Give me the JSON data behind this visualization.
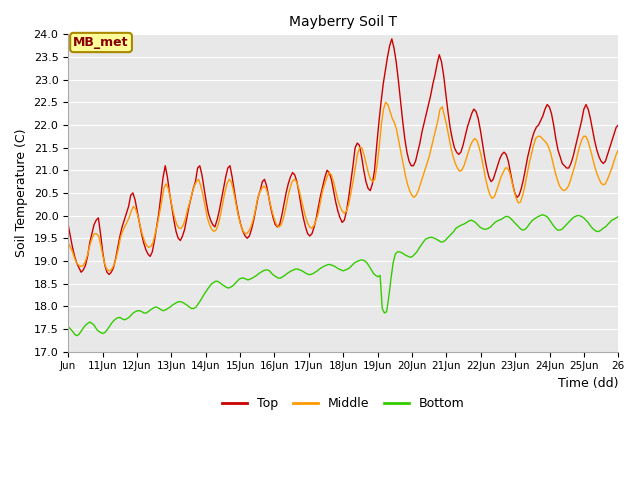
{
  "title": "Mayberry Soil T",
  "xlabel": "Time (dd)",
  "ylabel": "Soil Temperature (C)",
  "ylim": [
    17.0,
    24.0
  ],
  "yticks": [
    17.0,
    17.5,
    18.0,
    18.5,
    19.0,
    19.5,
    20.0,
    20.5,
    21.0,
    21.5,
    22.0,
    22.5,
    23.0,
    23.5,
    24.0
  ],
  "x_labels": [
    "Jun",
    "11Jun",
    "12Jun",
    "13Jun",
    "14Jun",
    "15Jun",
    "16Jun",
    "17Jun",
    "18Jun",
    "19Jun",
    "20Jun",
    "21Jun",
    "22Jun",
    "23Jun",
    "24Jun",
    "25Jun",
    "26"
  ],
  "legend_label": "MB_met",
  "top_color": "#cc0000",
  "middle_color": "#ff9900",
  "bottom_color": "#33cc00",
  "top_data": [
    19.8,
    19.55,
    19.3,
    19.1,
    18.95,
    18.85,
    18.75,
    18.8,
    18.9,
    19.1,
    19.4,
    19.6,
    19.8,
    19.9,
    19.95,
    19.6,
    19.2,
    18.9,
    18.75,
    18.7,
    18.75,
    18.85,
    19.05,
    19.3,
    19.55,
    19.75,
    19.9,
    20.05,
    20.2,
    20.45,
    20.5,
    20.35,
    20.1,
    19.85,
    19.6,
    19.4,
    19.25,
    19.15,
    19.1,
    19.2,
    19.45,
    19.75,
    20.05,
    20.45,
    20.85,
    21.1,
    20.85,
    20.5,
    20.2,
    19.9,
    19.65,
    19.5,
    19.45,
    19.55,
    19.7,
    19.95,
    20.2,
    20.4,
    20.6,
    20.75,
    21.05,
    21.1,
    20.9,
    20.6,
    20.3,
    20.05,
    19.9,
    19.8,
    19.75,
    19.9,
    20.1,
    20.35,
    20.6,
    20.85,
    21.05,
    21.1,
    20.85,
    20.55,
    20.25,
    20.0,
    19.8,
    19.65,
    19.55,
    19.5,
    19.55,
    19.7,
    19.9,
    20.15,
    20.4,
    20.55,
    20.75,
    20.8,
    20.65,
    20.4,
    20.15,
    19.95,
    19.8,
    19.75,
    19.8,
    20.0,
    20.25,
    20.5,
    20.7,
    20.85,
    20.95,
    20.9,
    20.75,
    20.5,
    20.2,
    19.95,
    19.75,
    19.6,
    19.55,
    19.6,
    19.75,
    19.95,
    20.2,
    20.45,
    20.65,
    20.85,
    21.0,
    20.95,
    20.8,
    20.55,
    20.3,
    20.1,
    19.95,
    19.85,
    19.9,
    20.1,
    20.4,
    20.75,
    21.1,
    21.5,
    21.6,
    21.55,
    21.3,
    21.0,
    20.75,
    20.6,
    20.55,
    20.7,
    21.0,
    21.55,
    22.05,
    22.5,
    22.9,
    23.2,
    23.5,
    23.75,
    23.9,
    23.7,
    23.4,
    23.0,
    22.55,
    22.1,
    21.7,
    21.4,
    21.2,
    21.1,
    21.1,
    21.2,
    21.4,
    21.6,
    21.85,
    22.05,
    22.25,
    22.45,
    22.65,
    22.9,
    23.1,
    23.35,
    23.55,
    23.4,
    23.1,
    22.7,
    22.3,
    21.95,
    21.7,
    21.5,
    21.4,
    21.35,
    21.4,
    21.55,
    21.75,
    21.95,
    22.1,
    22.25,
    22.35,
    22.3,
    22.15,
    21.9,
    21.6,
    21.3,
    21.05,
    20.85,
    20.75,
    20.8,
    20.95,
    21.1,
    21.25,
    21.35,
    21.4,
    21.35,
    21.2,
    20.95,
    20.7,
    20.5,
    20.4,
    20.45,
    20.6,
    20.8,
    21.05,
    21.3,
    21.5,
    21.7,
    21.85,
    21.95,
    22.0,
    22.1,
    22.2,
    22.35,
    22.45,
    22.4,
    22.25,
    22.0,
    21.7,
    21.45,
    21.3,
    21.15,
    21.1,
    21.05,
    21.05,
    21.15,
    21.3,
    21.5,
    21.7,
    21.9,
    22.1,
    22.35,
    22.45,
    22.35,
    22.15,
    21.9,
    21.65,
    21.45,
    21.3,
    21.2,
    21.15,
    21.2,
    21.35,
    21.5,
    21.65,
    21.8,
    21.95,
    22.0
  ],
  "middle_data": [
    19.4,
    19.3,
    19.2,
    19.05,
    18.95,
    18.9,
    18.88,
    18.9,
    19.0,
    19.15,
    19.35,
    19.5,
    19.6,
    19.6,
    19.55,
    19.35,
    19.1,
    18.9,
    18.8,
    18.78,
    18.82,
    18.9,
    19.05,
    19.25,
    19.5,
    19.65,
    19.75,
    19.85,
    19.95,
    20.1,
    20.2,
    20.15,
    20.0,
    19.8,
    19.6,
    19.45,
    19.35,
    19.3,
    19.32,
    19.4,
    19.6,
    19.8,
    20.05,
    20.3,
    20.6,
    20.7,
    20.6,
    20.4,
    20.15,
    19.95,
    19.8,
    19.72,
    19.72,
    19.8,
    19.95,
    20.15,
    20.3,
    20.5,
    20.65,
    20.75,
    20.8,
    20.65,
    20.45,
    20.2,
    19.95,
    19.8,
    19.7,
    19.65,
    19.68,
    19.8,
    20.0,
    20.25,
    20.5,
    20.7,
    20.8,
    20.75,
    20.55,
    20.3,
    20.05,
    19.85,
    19.7,
    19.62,
    19.6,
    19.65,
    19.75,
    19.9,
    20.1,
    20.35,
    20.5,
    20.6,
    20.65,
    20.6,
    20.45,
    20.25,
    20.05,
    19.9,
    19.78,
    19.75,
    19.8,
    19.95,
    20.15,
    20.4,
    20.6,
    20.75,
    20.8,
    20.75,
    20.6,
    20.4,
    20.2,
    20.0,
    19.85,
    19.75,
    19.72,
    19.78,
    19.9,
    20.05,
    20.3,
    20.55,
    20.7,
    20.85,
    20.95,
    20.9,
    20.75,
    20.55,
    20.35,
    20.2,
    20.1,
    20.05,
    20.1,
    20.25,
    20.5,
    20.75,
    21.05,
    21.35,
    21.5,
    21.5,
    21.35,
    21.15,
    20.95,
    20.8,
    20.75,
    20.8,
    21.1,
    21.5,
    22.0,
    22.35,
    22.5,
    22.45,
    22.3,
    22.15,
    22.05,
    21.9,
    21.65,
    21.4,
    21.15,
    20.9,
    20.7,
    20.55,
    20.45,
    20.4,
    20.45,
    20.55,
    20.7,
    20.85,
    21.0,
    21.15,
    21.3,
    21.5,
    21.7,
    21.9,
    22.1,
    22.35,
    22.4,
    22.2,
    22.0,
    21.75,
    21.5,
    21.3,
    21.15,
    21.05,
    20.98,
    21.0,
    21.1,
    21.25,
    21.4,
    21.55,
    21.65,
    21.7,
    21.65,
    21.5,
    21.3,
    21.05,
    20.8,
    20.6,
    20.45,
    20.38,
    20.42,
    20.55,
    20.7,
    20.85,
    20.95,
    21.05,
    21.05,
    20.95,
    20.75,
    20.55,
    20.38,
    20.28,
    20.3,
    20.45,
    20.65,
    20.9,
    21.15,
    21.35,
    21.55,
    21.7,
    21.75,
    21.75,
    21.7,
    21.65,
    21.6,
    21.5,
    21.35,
    21.15,
    20.95,
    20.78,
    20.65,
    20.58,
    20.55,
    20.58,
    20.65,
    20.78,
    20.95,
    21.1,
    21.3,
    21.5,
    21.65,
    21.75,
    21.75,
    21.65,
    21.48,
    21.3,
    21.1,
    20.95,
    20.82,
    20.72,
    20.68,
    20.7,
    20.8,
    20.92,
    21.05,
    21.2,
    21.35,
    21.45
  ],
  "bottom_data": [
    17.55,
    17.5,
    17.45,
    17.38,
    17.35,
    17.38,
    17.45,
    17.52,
    17.58,
    17.62,
    17.65,
    17.62,
    17.58,
    17.5,
    17.45,
    17.42,
    17.4,
    17.42,
    17.48,
    17.55,
    17.62,
    17.68,
    17.72,
    17.75,
    17.75,
    17.72,
    17.7,
    17.72,
    17.75,
    17.8,
    17.85,
    17.88,
    17.9,
    17.9,
    17.88,
    17.85,
    17.85,
    17.88,
    17.92,
    17.95,
    17.98,
    17.98,
    17.95,
    17.92,
    17.9,
    17.92,
    17.95,
    17.98,
    18.02,
    18.05,
    18.08,
    18.1,
    18.1,
    18.08,
    18.05,
    18.02,
    17.98,
    17.95,
    17.95,
    17.98,
    18.05,
    18.12,
    18.2,
    18.28,
    18.35,
    18.42,
    18.48,
    18.52,
    18.55,
    18.55,
    18.52,
    18.48,
    18.45,
    18.42,
    18.4,
    18.42,
    18.45,
    18.5,
    18.55,
    18.6,
    18.62,
    18.62,
    18.6,
    18.58,
    18.6,
    18.62,
    18.65,
    18.68,
    18.72,
    18.75,
    18.78,
    18.8,
    18.8,
    18.78,
    18.72,
    18.68,
    18.65,
    18.62,
    18.62,
    18.65,
    18.68,
    18.72,
    18.75,
    18.78,
    18.8,
    18.82,
    18.82,
    18.8,
    18.78,
    18.75,
    18.72,
    18.7,
    18.7,
    18.72,
    18.75,
    18.78,
    18.82,
    18.85,
    18.88,
    18.9,
    18.92,
    18.92,
    18.9,
    18.88,
    18.85,
    18.82,
    18.8,
    18.78,
    18.8,
    18.82,
    18.85,
    18.9,
    18.95,
    18.98,
    19.0,
    19.02,
    19.02,
    19.0,
    18.95,
    18.88,
    18.8,
    18.72,
    18.68,
    18.65,
    18.68,
    17.95,
    17.85,
    17.88,
    18.2,
    18.6,
    18.95,
    19.15,
    19.2,
    19.2,
    19.18,
    19.15,
    19.12,
    19.1,
    19.08,
    19.1,
    19.15,
    19.2,
    19.28,
    19.35,
    19.42,
    19.48,
    19.5,
    19.52,
    19.52,
    19.5,
    19.48,
    19.45,
    19.42,
    19.42,
    19.45,
    19.5,
    19.55,
    19.6,
    19.65,
    19.72,
    19.75,
    19.78,
    19.8,
    19.82,
    19.85,
    19.88,
    19.9,
    19.88,
    19.85,
    19.8,
    19.75,
    19.72,
    19.7,
    19.7,
    19.72,
    19.75,
    19.8,
    19.85,
    19.88,
    19.9,
    19.92,
    19.95,
    19.98,
    19.98,
    19.95,
    19.9,
    19.85,
    19.8,
    19.75,
    19.7,
    19.68,
    19.7,
    19.75,
    19.82,
    19.88,
    19.92,
    19.95,
    19.98,
    20.0,
    20.02,
    20.0,
    19.98,
    19.92,
    19.85,
    19.78,
    19.72,
    19.68,
    19.68,
    19.7,
    19.75,
    19.8,
    19.85,
    19.9,
    19.95,
    19.98,
    20.0,
    20.0,
    19.98,
    19.95,
    19.9,
    19.85,
    19.78,
    19.72,
    19.68,
    19.65,
    19.65,
    19.68,
    19.72,
    19.75,
    19.8,
    19.85,
    19.9,
    19.92,
    19.95,
    19.98
  ]
}
